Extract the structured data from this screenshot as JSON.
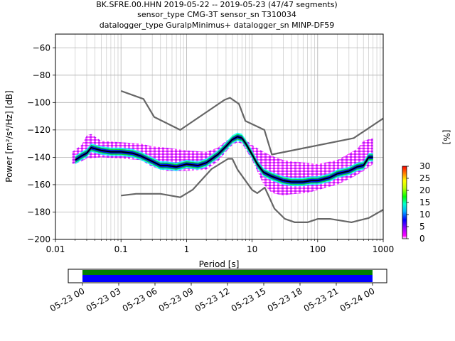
{
  "title_lines": [
    "BK.SFRE.00.HHN   2019-05-22 -- 2019-05-23  (47/47 segments)",
    "sensor_type CMG-3T sensor_sn T310034",
    "datalogger_type GuralpMinimus+ datalogger_sn MINP-DF59"
  ],
  "chart_data": {
    "type": "heatmap",
    "xlabel": "Period [s]",
    "ylabel": "Power [m²/s⁴/Hz] [dB]",
    "xscale": "log",
    "xlim": [
      0.01,
      1000
    ],
    "ylim": [
      -200,
      -50
    ],
    "xticks": [
      0.01,
      0.1,
      1,
      10,
      100,
      1000
    ],
    "xtick_labels": [
      "0.01",
      "0.1",
      "1",
      "10",
      "100",
      "1000"
    ],
    "yticks": [
      -200,
      -180,
      -160,
      -140,
      -120,
      -100,
      -80,
      -60
    ],
    "ytick_labels": [
      "−200",
      "−180",
      "−160",
      "−140",
      "−120",
      "−100",
      "−80",
      "−60"
    ],
    "grid": true,
    "colorbar": {
      "label": "[%]",
      "range": [
        0,
        30
      ],
      "ticks": [
        0,
        5,
        10,
        15,
        20,
        25,
        30
      ],
      "tick_labels": [
        "0",
        "5",
        "10",
        "15",
        "20",
        "25",
        "30"
      ]
    },
    "series": [
      {
        "role": "noise-model-high",
        "color": "#666666",
        "x": [
          0.1,
          0.22,
          0.32,
          0.8,
          3.8,
          4.6,
          6.3,
          7.9,
          15.4,
          20,
          354.8,
          1000
        ],
        "y": [
          -91.5,
          -97.4,
          -110.5,
          -120,
          -98,
          -96.5,
          -101,
          -113.5,
          -120,
          -138,
          -126,
          -111.6
        ]
      },
      {
        "role": "noise-model-low",
        "color": "#666666",
        "x": [
          0.1,
          0.17,
          0.4,
          0.8,
          1.24,
          2.4,
          4.3,
          5,
          6,
          10,
          12,
          15.6,
          21.9,
          31.6,
          45,
          70,
          101,
          154,
          328,
          600,
          1000
        ],
        "y": [
          -168,
          -166.7,
          -166.7,
          -169.2,
          -163.7,
          -148.6,
          -141.1,
          -141.1,
          -149,
          -163.8,
          -166.2,
          -162.1,
          -177.5,
          -185,
          -187.5,
          -187.5,
          -185,
          -185,
          -187.5,
          -184.4,
          -178.3
        ]
      },
      {
        "role": "mode",
        "color": "#000000",
        "x": [
          0.02,
          0.025,
          0.03,
          0.035,
          0.05,
          0.07,
          0.1,
          0.15,
          0.2,
          0.3,
          0.4,
          0.5,
          0.7,
          1,
          1.5,
          2,
          3,
          4,
          5,
          6,
          7,
          8,
          10,
          12,
          15,
          20,
          30,
          40,
          60,
          80,
          100,
          150,
          200,
          300,
          400,
          500,
          600,
          700
        ],
        "y": [
          -142,
          -139,
          -137,
          -133,
          -135,
          -136,
          -136,
          -137,
          -139,
          -143,
          -146,
          -146,
          -147,
          -145,
          -146,
          -144,
          -138,
          -132,
          -127,
          -125,
          -126,
          -130,
          -138,
          -145,
          -151,
          -154,
          -157,
          -158,
          -158,
          -157,
          -157,
          -155,
          -152,
          -150,
          -147,
          -146,
          -140,
          -140
        ]
      }
    ],
    "density_region": {
      "upper": {
        "x": [
          0.018,
          0.025,
          0.03,
          0.035,
          0.05,
          0.1,
          0.2,
          0.3,
          0.5,
          1,
          2,
          3,
          4,
          5,
          6,
          7,
          10,
          15,
          20,
          30,
          40,
          70,
          100,
          200,
          400,
          500,
          700
        ],
        "y": [
          -136,
          -131,
          -124,
          -123,
          -128,
          -129,
          -130,
          -132,
          -133,
          -135,
          -136,
          -133,
          -128,
          -126,
          -125,
          -125,
          -131,
          -136,
          -139,
          -142,
          -143,
          -144,
          -145,
          -142,
          -134,
          -128,
          -126
        ]
      },
      "lower": {
        "x": [
          0.018,
          0.025,
          0.03,
          0.05,
          0.1,
          0.2,
          0.3,
          0.5,
          1,
          2,
          3,
          4,
          5,
          6,
          7,
          10,
          15,
          20,
          30,
          40,
          70,
          100,
          200,
          400,
          500,
          700
        ],
        "y": [
          -145,
          -143,
          -141,
          -140,
          -141,
          -142,
          -147,
          -150,
          -150,
          -149,
          -143,
          -136,
          -131,
          -129,
          -130,
          -142,
          -160,
          -166,
          -168,
          -167,
          -166,
          -164,
          -160,
          -153,
          -150,
          -145
        ]
      }
    }
  },
  "timeline": {
    "tick_labels": [
      "05-23 00",
      "05-23 03",
      "05-23 06",
      "05-23 09",
      "05-23 12",
      "05-23 15",
      "05-23 18",
      "05-23 21",
      "05-24 00"
    ],
    "colors": {
      "top": "#008000",
      "bottom": "#0000ff"
    }
  }
}
